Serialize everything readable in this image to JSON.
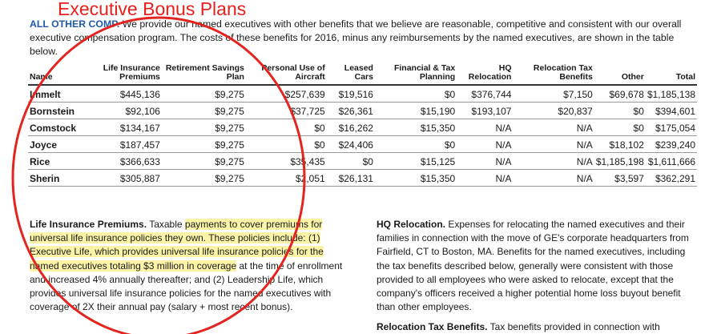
{
  "header": {
    "title": "Executive Bonus Plans"
  },
  "intro": {
    "label": "ALL OTHER COMP.",
    "text": "We provide our named executives with other benefits that we believe are reasonable, competitive and consistent with our overall executive compensation program. The costs of these benefits for 2016, minus any reimbursements by the named executives, are shown in the table below."
  },
  "table": {
    "columns": [
      "Name",
      "Life Insurance Premiums",
      "Retirement Savings Plan",
      "Personal Use of Aircraft",
      "Leased Cars",
      "Financial & Tax Planning",
      "HQ Relocation",
      "Relocation Tax Benefits",
      "Other",
      "Total"
    ],
    "rows": [
      [
        "Immelt",
        "$445,136",
        "$9,275",
        "$257,639",
        "$19,516",
        "$0",
        "$376,744",
        "$7,150",
        "$69,678",
        "$1,185,138"
      ],
      [
        "Bornstein",
        "$92,106",
        "$9,275",
        "$37,725",
        "$26,361",
        "$15,190",
        "$193,107",
        "$20,837",
        "$0",
        "$394,601"
      ],
      [
        "Comstock",
        "$134,167",
        "$9,275",
        "$0",
        "$16,262",
        "$15,350",
        "N/A",
        "N/A",
        "$0",
        "$175,054"
      ],
      [
        "Joyce",
        "$187,457",
        "$9,275",
        "$0",
        "$24,406",
        "$0",
        "N/A",
        "N/A",
        "$18,102",
        "$239,240"
      ],
      [
        "Rice",
        "$366,633",
        "$9,275",
        "$35,435",
        "$0",
        "$15,125",
        "N/A",
        "N/A",
        "$1,185,198",
        "$1,611,666"
      ],
      [
        "Sherin",
        "$305,887",
        "$9,275",
        "$2,051",
        "$26,131",
        "$15,350",
        "N/A",
        "N/A",
        "$3,597",
        "$362,291"
      ]
    ]
  },
  "notes": [
    {
      "heading": "Life Insurance Premiums.",
      "segments": [
        {
          "text": "Taxable ",
          "highlight": false
        },
        {
          "text": "payments to cover premiums for universal life insurance policies they own. These policies include: (1) Executive Life, which provides universal life insurance policies for the named executives totaling $3 million in coverage",
          "highlight": true
        },
        {
          "text": " at the time of enrollment and increased 4% annually thereafter; and (2) Leadership Life, which provides universal life insurance policies for the named executives with coverage of 2X their annual pay (salary + most recent bonus).",
          "highlight": false
        }
      ]
    },
    {
      "heading": "HQ Relocation.",
      "segments": [
        {
          "text": "Expenses for relocating the named executives and their families in connection with the move of GE's corporate headquarters from Fairfield, CT to Boston, MA. Benefits for the named executives, including the tax benefits described below, generally were consistent with those provided to all employees who were asked to relocate, except that the company's officers received a higher potential home loss buyout benefit than other employees.",
          "highlight": false
        }
      ]
    },
    {
      "heading": "Relocation Tax Benefits.",
      "segments": [
        {
          "text": "Tax benefits provided in connection with",
          "highlight": false
        }
      ]
    }
  ]
}
